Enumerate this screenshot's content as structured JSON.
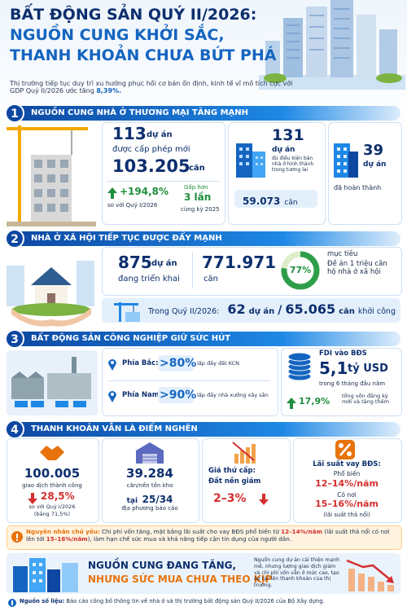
{
  "header": {
    "title_lines": [
      "BẤT ĐỘNG SẢN QUÝ II/2026:",
      "NGUỒN CUNG KHỞI SẮC,",
      "THANH KHOẢN CHƯA BỨT PHÁ"
    ],
    "intro": "Thị trường tiếp tục duy trì xu hướng phục hồi cơ bản ổn định, kinh tế vĩ mô tích cực với GDP Quý II/2026 ước tăng",
    "intro_highlight": "8,39%."
  },
  "section1": {
    "number": "1",
    "title": "NGUỒN CUNG NHÀ Ở THƯƠNG MẠI TĂNG MẠNH",
    "licensed": {
      "projects": "113",
      "projects_unit": "dự án",
      "caption": "được cấp phép mới",
      "units": "103.205",
      "units_unit": "căn"
    },
    "growth": {
      "value": "+194,8%",
      "caption": "so với Quý I/2026"
    },
    "multiple": {
      "prefix": "Gấp hơn",
      "value": "3 lần",
      "caption": "cùng kỳ 2025"
    },
    "eligible": {
      "projects": "131",
      "projects_unit": "dự án",
      "caption": "đủ điều kiện bán nhà ở hình thành trong tương lai",
      "units": "59.073",
      "units_unit": "căn"
    },
    "completed": {
      "projects": "39",
      "projects_unit": "dự án",
      "caption": "đã hoàn thành"
    }
  },
  "section2": {
    "number": "2",
    "title": "NHÀ Ở XÃ HỘI TIẾP TỤC ĐƯỢC ĐẨY MẠNH",
    "ongoing": {
      "projects": "875",
      "projects_unit": "dự án",
      "caption": "đang triển khai"
    },
    "units": {
      "value": "771.971",
      "unit": "căn"
    },
    "progress": {
      "value": 77,
      "label": "77%"
    },
    "target": {
      "label": "mục tiêu",
      "caption": "Đề án 1 triệu căn hộ nhà ở xã hội"
    },
    "quarter": {
      "label": "Trong Quý II/2026:",
      "projects": "62",
      "projects_unit": "dự án",
      "separator": "/",
      "units": "65.065",
      "units_unit": "căn",
      "caption": "khởi công"
    }
  },
  "section3": {
    "number": "3",
    "title": "BẤT ĐỘNG SẢN CÔNG NGHIỆP GIỮ SỨC HÚT",
    "north": {
      "label": "Phía Bắc:",
      "value": ">80%",
      "caption": "lấp đầy đất KCN"
    },
    "south": {
      "label": "Phía Nam:",
      "value": ">90%",
      "caption": "lấp đầy nhà xưởng xây sẵn"
    },
    "fdi": {
      "label": "FDI vào BĐS",
      "value": "5,1",
      "unit": "tỷ USD",
      "caption": "trong 6 tháng đầu năm"
    },
    "share": {
      "value": "17,9%",
      "caption": "tổng vốn đăng ký mới và tăng thêm"
    }
  },
  "section4": {
    "number": "4",
    "title": "THANH KHOẢN VẪN LÀ ĐIỂM NGHẼN",
    "transactions": {
      "value": "100.005",
      "caption": "giao dịch thành công",
      "change": "28,5%",
      "change_caption": "so với Quý I/2026",
      "ratio": "(bằng 71,5%)"
    },
    "inventory": {
      "value": "39.284",
      "caption": "căn/nền tồn kho",
      "prefix": "tại",
      "localities": "25/34",
      "localities_caption": "địa phương báo cáo"
    },
    "secondary": {
      "label": "Giá thứ cấp:",
      "caption": "Đất nền giảm",
      "value": "2–3%"
    },
    "rates": {
      "label": "Lãi suất vay BĐS:",
      "common_label": "Phổ biến",
      "common": "12–14%/năm",
      "some_label": "Có nơi",
      "some": "15–16%/năm",
      "note": "(lãi suất thả nổi)"
    },
    "cause": {
      "label": "Nguyên nhân chủ yếu:",
      "text1": "Chi phí vốn tăng, mặt bằng lãi suất cho vay BĐS phổ biến từ",
      "rate1": "12–14%/năm",
      "text2": "(lãi suất thả nổi có nơi lên tới",
      "rate2": "15–16%/năm",
      "text3": "), làm hạn chế sức mua và khả năng tiếp cận tín dụng của người dân."
    }
  },
  "conclusion": {
    "line1": "NGUỒN CUNG ĐANG TĂNG,",
    "line2": "NHƯNG SỨC MUA CHƯA THEO KỊP",
    "text": "Nguồn cung dự án cải thiện mạnh mẽ, nhưng lượng giao dịch giảm và chi phí vốn vẫn ở mức cao, tạo áp lực lên thanh khoản của thị trường."
  },
  "source": {
    "label": "Nguồn số liệu:",
    "text": "Báo cáo công bố thông tin về nhà ở và thị trường bất động sản Quý II/2026 của Bộ Xây dựng."
  }
}
